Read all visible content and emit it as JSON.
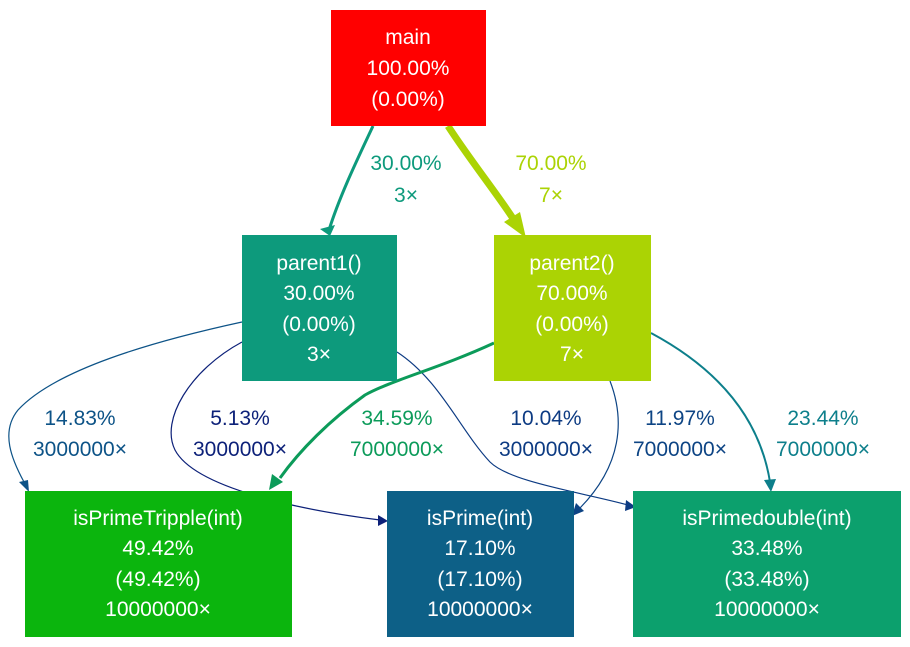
{
  "nodes": {
    "main": {
      "name": "main",
      "total": "100.00%",
      "self": "(0.00%)",
      "calls": "",
      "color": "#ff0000"
    },
    "parent1": {
      "name": "parent1()",
      "total": "30.00%",
      "self": "(0.00%)",
      "calls": "3×",
      "color": "#0d9a7c"
    },
    "parent2": {
      "name": "parent2()",
      "total": "70.00%",
      "self": "(0.00%)",
      "calls": "7×",
      "color": "#abd304"
    },
    "isPrimeTripple": {
      "name": "isPrimeTripple(int)",
      "total": "49.42%",
      "self": "(49.42%)",
      "calls": "10000000×",
      "color": "#0bb50d"
    },
    "isPrime": {
      "name": "isPrime(int)",
      "total": "17.10%",
      "self": "(17.10%)",
      "calls": "10000000×",
      "color": "#0d6087"
    },
    "isPrimedouble": {
      "name": "isPrimedouble(int)",
      "total": "33.48%",
      "self": "(33.48%)",
      "calls": "10000000×",
      "color": "#0ca06d"
    }
  },
  "edges": {
    "main_parent1": {
      "pct": "30.00%",
      "calls": "3×",
      "color": "#0d9a7c"
    },
    "main_parent2": {
      "pct": "70.00%",
      "calls": "7×",
      "color": "#abd304"
    },
    "parent1_isPrimeTripple": {
      "pct": "14.83%",
      "calls": "3000000×",
      "color": "#0d5387"
    },
    "parent1_isPrime": {
      "pct": "5.13%",
      "calls": "3000000×",
      "color": "#0d2179"
    },
    "parent1_isPrimedouble": {
      "pct": "10.04%",
      "calls": "3000000×",
      "color": "#0d3b83"
    },
    "parent2_isPrimeTripple": {
      "pct": "34.59%",
      "calls": "7000000×",
      "color": "#0c9b5a"
    },
    "parent2_isPrime": {
      "pct": "11.97%",
      "calls": "7000000×",
      "color": "#0d4484"
    },
    "parent2_isPrimedouble": {
      "pct": "23.44%",
      "calls": "7000000×",
      "color": "#0d7f8b"
    }
  }
}
